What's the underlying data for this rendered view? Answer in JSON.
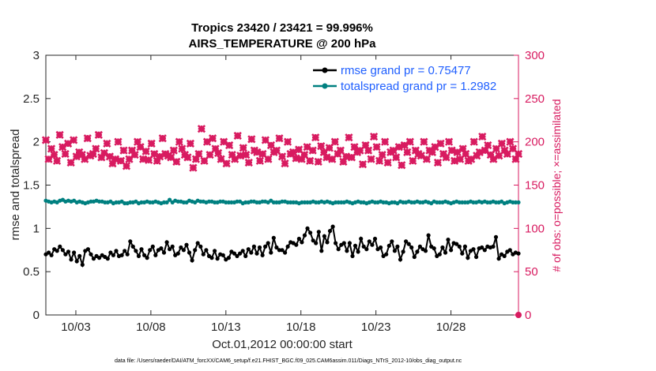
{
  "chart_data": {
    "type": "line",
    "title": "Tropics 23420 / 23421 = 99.996%",
    "subtitle": "AIRS_TEMPERATURE @ 200 hPa",
    "xlabel": "Oct.01,2012 00:00:00 start",
    "ylabel": "rmse and totalspread",
    "y2label": "# of obs: o=possible; ×=assimilated",
    "x_tick_labels": [
      "10/03",
      "10/08",
      "10/13",
      "10/18",
      "10/23",
      "10/28"
    ],
    "x_tick_days": [
      3,
      8,
      13,
      18,
      23,
      28
    ],
    "xlim_days": [
      1,
      32.5
    ],
    "ylim": [
      0,
      3
    ],
    "y_ticks": [
      "0",
      "0.5",
      "1",
      "1.5",
      "2",
      "2.5",
      "3"
    ],
    "y2lim": [
      0,
      300
    ],
    "y2_ticks": [
      "0",
      "50",
      "100",
      "150",
      "200",
      "250",
      "300"
    ],
    "grid": false,
    "legend_position": "top-right",
    "footer": "data file: /Users/raeder/DAI/ATM_forcXX/CAM6_setup/f.e21.FHIST_BGC.f09_025.CAM6assim.011/Diags_NTrS_2012-10/obs_diag_output.nc",
    "series": [
      {
        "name": "rmse grand pr = 0.75477",
        "color": "#000000",
        "marker": "circle",
        "axis": "left",
        "values": [
          0.7,
          0.72,
          0.69,
          0.76,
          0.74,
          0.79,
          0.75,
          0.7,
          0.73,
          0.64,
          0.72,
          0.62,
          0.68,
          0.58,
          0.74,
          0.76,
          0.7,
          0.65,
          0.68,
          0.66,
          0.69,
          0.67,
          0.65,
          0.72,
          0.69,
          0.74,
          0.68,
          0.69,
          0.74,
          0.7,
          0.85,
          0.79,
          0.74,
          0.68,
          0.76,
          0.69,
          0.66,
          0.75,
          0.79,
          0.69,
          0.75,
          0.77,
          0.72,
          0.84,
          0.76,
          0.79,
          0.69,
          0.71,
          0.78,
          0.75,
          0.81,
          0.72,
          0.63,
          0.75,
          0.83,
          0.79,
          0.7,
          0.75,
          0.68,
          0.66,
          0.74,
          0.65,
          0.7,
          0.69,
          0.64,
          0.66,
          0.73,
          0.71,
          0.68,
          0.71,
          0.74,
          0.68,
          0.76,
          0.72,
          0.79,
          0.71,
          0.78,
          0.69,
          0.79,
          0.83,
          0.72,
          0.89,
          0.78,
          0.75,
          0.75,
          0.72,
          0.79,
          0.84,
          0.83,
          0.81,
          0.88,
          0.84,
          0.92,
          1.0,
          0.95,
          0.86,
          0.83,
          0.96,
          0.74,
          0.91,
          0.84,
          0.97,
          1.02,
          0.83,
          0.76,
          0.81,
          0.83,
          0.74,
          0.83,
          0.68,
          0.8,
          0.73,
          0.88,
          0.79,
          0.76,
          0.85,
          0.81,
          0.88,
          0.76,
          0.78,
          0.68,
          0.7,
          0.8,
          0.85,
          0.74,
          0.79,
          0.64,
          0.73,
          0.85,
          0.82,
          0.78,
          0.67,
          0.73,
          0.79,
          0.76,
          0.74,
          0.92,
          0.79,
          0.77,
          0.68,
          0.7,
          0.78,
          0.72,
          0.87,
          0.75,
          0.83,
          0.82,
          0.79,
          0.71,
          0.79,
          0.66,
          0.74,
          0.76,
          0.67,
          0.77,
          0.78,
          0.75,
          0.79,
          0.78,
          0.79,
          0.9,
          0.65,
          0.7,
          0.68,
          0.73,
          0.75,
          0.7,
          0.72,
          0.71
        ]
      },
      {
        "name": "totalspread grand pr = 1.2982",
        "color": "#008080",
        "marker": "circle",
        "axis": "left",
        "values": [
          1.32,
          1.31,
          1.3,
          1.31,
          1.3,
          1.32,
          1.33,
          1.31,
          1.32,
          1.31,
          1.32,
          1.3,
          1.31,
          1.3,
          1.29,
          1.3,
          1.31,
          1.31,
          1.32,
          1.31,
          1.31,
          1.3,
          1.3,
          1.31,
          1.29,
          1.3,
          1.3,
          1.31,
          1.29,
          1.29,
          1.3,
          1.3,
          1.31,
          1.29,
          1.3,
          1.3,
          1.31,
          1.3,
          1.3,
          1.31,
          1.3,
          1.29,
          1.3,
          1.3,
          1.33,
          1.3,
          1.32,
          1.31,
          1.31,
          1.3,
          1.3,
          1.32,
          1.31,
          1.3,
          1.32,
          1.31,
          1.31,
          1.3,
          1.31,
          1.31,
          1.3,
          1.3,
          1.31,
          1.31,
          1.3,
          1.3,
          1.3,
          1.3,
          1.31,
          1.31,
          1.29,
          1.3,
          1.3,
          1.31,
          1.31,
          1.3,
          1.3,
          1.31,
          1.31,
          1.3,
          1.32,
          1.3,
          1.3,
          1.3,
          1.31,
          1.31,
          1.3,
          1.3,
          1.3,
          1.3,
          1.29,
          1.3,
          1.3,
          1.3,
          1.3,
          1.31,
          1.3,
          1.3,
          1.31,
          1.3,
          1.31,
          1.3,
          1.29,
          1.3,
          1.3,
          1.3,
          1.3,
          1.31,
          1.3,
          1.29,
          1.3,
          1.31,
          1.3,
          1.3,
          1.29,
          1.3,
          1.31,
          1.3,
          1.3,
          1.31,
          1.3,
          1.3,
          1.29,
          1.3,
          1.3,
          1.29,
          1.31,
          1.3,
          1.3,
          1.31,
          1.3,
          1.3,
          1.31,
          1.3,
          1.3,
          1.31,
          1.3,
          1.29,
          1.31,
          1.3,
          1.3,
          1.3,
          1.31,
          1.3,
          1.29,
          1.3,
          1.31,
          1.3,
          1.3,
          1.3,
          1.3,
          1.31,
          1.3,
          1.3,
          1.31,
          1.3,
          1.31,
          1.3,
          1.3,
          1.31,
          1.3,
          1.3,
          1.31,
          1.29,
          1.3,
          1.31,
          1.3,
          1.3,
          1.3
        ]
      },
      {
        "name": "obs assimilated",
        "color": "#d81b60",
        "marker": "x",
        "axis": "right",
        "values": [
          202,
          180,
          192,
          185,
          178,
          208,
          194,
          186,
          198,
          176,
          202,
          183,
          188,
          185,
          180,
          204,
          184,
          186,
          192,
          208,
          182,
          187,
          198,
          183,
          175,
          180,
          200,
          178,
          190,
          172,
          180,
          190,
          185,
          200,
          194,
          180,
          189,
          179,
          198,
          186,
          178,
          183,
          204,
          186,
          184,
          182,
          190,
          177,
          200,
          192,
          185,
          182,
          198,
          170,
          180,
          186,
          215,
          178,
          200,
          185,
          204,
          192,
          187,
          180,
          200,
          175,
          196,
          185,
          180,
          207,
          184,
          193,
          185,
          176,
          203,
          190,
          188,
          178,
          186,
          202,
          180,
          196,
          188,
          190,
          204,
          183,
          175,
          200,
          186,
          188,
          181,
          191,
          180,
          185,
          194,
          178,
          190,
          205,
          177,
          195,
          188,
          182,
          193,
          180,
          200,
          186,
          190,
          177,
          183,
          205,
          182,
          194,
          188,
          190,
          174,
          196,
          190,
          180,
          206,
          194,
          178,
          185,
          200,
          176,
          188,
          190,
          182,
          194,
          173,
          196,
          188,
          200,
          178,
          190,
          186,
          184,
          200,
          180,
          190,
          188,
          194,
          176,
          198,
          186,
          182,
          200,
          190,
          178,
          188,
          180,
          192,
          186,
          178,
          180,
          200,
          184,
          188,
          206,
          190,
          196,
          185,
          180,
          192,
          184,
          198,
          190,
          186,
          200,
          192,
          180,
          186
        ]
      }
    ]
  }
}
